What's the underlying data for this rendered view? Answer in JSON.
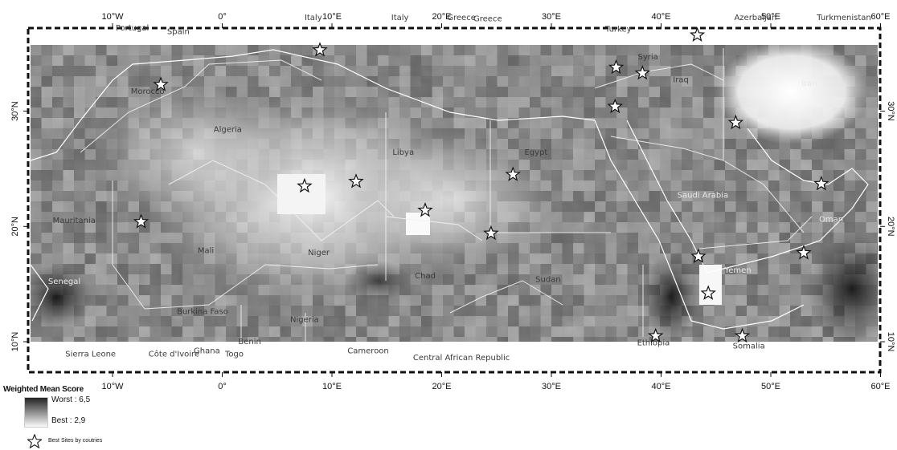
{
  "map": {
    "lon_range": [
      -10,
      60
    ],
    "lat_range": [
      10,
      37
    ],
    "x_ticks": [
      "10°W",
      "0°",
      "10°E",
      "20°E",
      "30°E",
      "40°E",
      "50°E",
      "60°E"
    ],
    "y_ticks": [
      "30°N",
      "20°N",
      "10°N"
    ],
    "countries": [
      {
        "name": "Portugal",
        "lon": -8.2,
        "lat": 37.0
      },
      {
        "name": "Spain",
        "lon": -4.0,
        "lat": 36.7
      },
      {
        "name": "Italy",
        "lon": 8.3,
        "lat": 37.9
      },
      {
        "name": "Italy",
        "lon": 16.2,
        "lat": 37.9
      },
      {
        "name": "Greece",
        "lon": 21.8,
        "lat": 37.9
      },
      {
        "name": "Greece",
        "lon": 24.2,
        "lat": 37.8
      },
      {
        "name": "Turkey",
        "lon": 36.1,
        "lat": 36.9
      },
      {
        "name": "Azerbaijan",
        "lon": 48.6,
        "lat": 37.9
      },
      {
        "name": "Turkmenistan",
        "lon": 57.7,
        "lat": 37.9
      },
      {
        "name": "Morocco",
        "lon": -6.8,
        "lat": 31.5
      },
      {
        "name": "Syria",
        "lon": 38.8,
        "lat": 34.5
      },
      {
        "name": "Iraq",
        "lon": 41.8,
        "lat": 32.5
      },
      {
        "name": "Iran",
        "lon": 53.5,
        "lat": 32.2
      },
      {
        "name": "Algeria",
        "lon": 0.5,
        "lat": 28.2
      },
      {
        "name": "Libya",
        "lon": 16.5,
        "lat": 26.2
      },
      {
        "name": "Egypt",
        "lon": 28.6,
        "lat": 26.2
      },
      {
        "name": "Saudi Arabia",
        "lon": 43.8,
        "lat": 22.5
      },
      {
        "name": "Mauritania",
        "lon": -13.5,
        "lat": 20.3
      },
      {
        "name": "Mali",
        "lon": -1.5,
        "lat": 17.7
      },
      {
        "name": "Niger",
        "lon": 8.8,
        "lat": 17.5
      },
      {
        "name": "Chad",
        "lon": 18.5,
        "lat": 15.5
      },
      {
        "name": "Sudan",
        "lon": 29.7,
        "lat": 15.2
      },
      {
        "name": "Oman",
        "lon": 55.5,
        "lat": 20.4
      },
      {
        "name": "Yemen",
        "lon": 47.0,
        "lat": 16.0
      },
      {
        "name": "Senegal",
        "lon": -14.6,
        "lat": 15.0
      },
      {
        "name": "Burkina Faso",
        "lon": -1.8,
        "lat": 12.4
      },
      {
        "name": "Nigeria",
        "lon": 7.5,
        "lat": 11.7
      },
      {
        "name": "Sierra Leone",
        "lon": -12.0,
        "lat": 8.7
      },
      {
        "name": "Côte d'Ivoire",
        "lon": -4.4,
        "lat": 8.7
      },
      {
        "name": "Ghana",
        "lon": -1.4,
        "lat": 9.0
      },
      {
        "name": "Togo",
        "lon": 1.1,
        "lat": 8.7
      },
      {
        "name": "Benin",
        "lon": 2.5,
        "lat": 9.8
      },
      {
        "name": "Cameroon",
        "lon": 13.3,
        "lat": 9.0
      },
      {
        "name": "Central African Republic",
        "lon": 21.8,
        "lat": 8.4
      },
      {
        "name": "Ethiopia",
        "lon": 39.3,
        "lat": 9.7
      },
      {
        "name": "Somalia",
        "lon": 48.0,
        "lat": 9.4
      }
    ],
    "best_sites": [
      {
        "lon": -5.6,
        "lat": 32.3
      },
      {
        "lon": -7.4,
        "lat": 20.4
      },
      {
        "lon": 8.9,
        "lat": 35.3
      },
      {
        "lon": 7.5,
        "lat": 23.5
      },
      {
        "lon": 12.2,
        "lat": 23.9
      },
      {
        "lon": 18.5,
        "lat": 21.4
      },
      {
        "lon": 24.5,
        "lat": 19.4
      },
      {
        "lon": 26.5,
        "lat": 24.5
      },
      {
        "lon": 35.9,
        "lat": 33.8
      },
      {
        "lon": 38.3,
        "lat": 33.3
      },
      {
        "lon": 35.8,
        "lat": 30.4
      },
      {
        "lon": 43.3,
        "lat": 36.6
      },
      {
        "lon": 46.8,
        "lat": 29.0
      },
      {
        "lon": 53.0,
        "lat": 17.7
      },
      {
        "lon": 43.4,
        "lat": 17.4
      },
      {
        "lon": 44.3,
        "lat": 14.2
      },
      {
        "lon": 39.5,
        "lat": 10.5
      },
      {
        "lon": 47.4,
        "lat": 10.5
      },
      {
        "lon": 54.6,
        "lat": 23.7
      }
    ]
  },
  "legend": {
    "title": "Weighted Mean Score",
    "worst_label": "Worst : 6,5",
    "best_label": "Best : 2,9",
    "sites_label": "Best Sites by coutries",
    "ramp_colors": [
      "#222222",
      "#fafafa"
    ]
  }
}
